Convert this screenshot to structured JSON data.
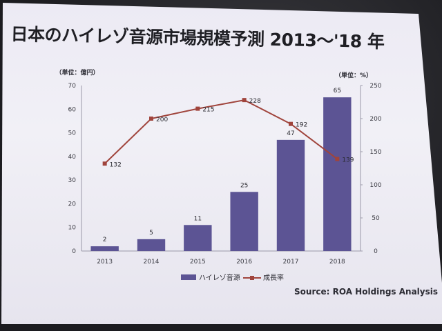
{
  "title": "日本のハイレゾ音源市場規模予測 2013〜'18 年",
  "source": "Source: ROA Holdings Analysis",
  "chart_data": {
    "type": "bar",
    "categories": [
      "2013",
      "2014",
      "2015",
      "2016",
      "2017",
      "2018"
    ],
    "series": [
      {
        "name": "ハイレゾ音源",
        "type": "bar",
        "axis": "left",
        "values": [
          2,
          5,
          11,
          25,
          47,
          65
        ],
        "color": "#5c5494"
      },
      {
        "name": "成長率",
        "type": "line",
        "axis": "right",
        "values": [
          132,
          200,
          215,
          228,
          192,
          139
        ],
        "color": "#a0443c"
      }
    ],
    "left_axis": {
      "unit_label": "（単位：億円）",
      "ylim": [
        0,
        70
      ],
      "ticks": [
        0,
        10,
        20,
        30,
        40,
        50,
        60,
        70
      ]
    },
    "right_axis": {
      "unit_label": "（単位：%）",
      "ylim": [
        0,
        250
      ],
      "ticks": [
        0,
        50,
        100,
        150,
        200,
        250
      ]
    },
    "legend_position": "bottom",
    "grid": false
  }
}
